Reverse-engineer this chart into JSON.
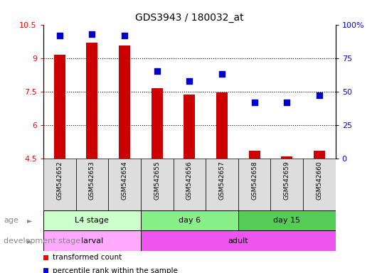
{
  "title": "GDS3943 / 180032_at",
  "samples": [
    "GSM542652",
    "GSM542653",
    "GSM542654",
    "GSM542655",
    "GSM542656",
    "GSM542657",
    "GSM542658",
    "GSM542659",
    "GSM542660"
  ],
  "transformed_count": [
    9.15,
    9.7,
    9.55,
    7.65,
    7.35,
    7.45,
    4.85,
    4.6,
    4.85
  ],
  "percentile_rank": [
    92,
    93,
    92,
    65,
    58,
    63,
    42,
    42,
    47
  ],
  "ylim_left": [
    4.5,
    10.5
  ],
  "ylim_right": [
    0,
    100
  ],
  "yticks_left": [
    4.5,
    6.0,
    7.5,
    9.0,
    10.5
  ],
  "ytick_labels_left": [
    "4.5",
    "6",
    "7.5",
    "9",
    "10.5"
  ],
  "yticks_right": [
    0,
    25,
    50,
    75,
    100
  ],
  "ytick_labels_right": [
    "0",
    "25",
    "50",
    "75",
    "100%"
  ],
  "age_groups": [
    {
      "label": "L4 stage",
      "start": 0,
      "end": 3,
      "color": "#ccffcc"
    },
    {
      "label": "day 6",
      "start": 3,
      "end": 6,
      "color": "#88ee88"
    },
    {
      "label": "day 15",
      "start": 6,
      "end": 9,
      "color": "#55cc55"
    }
  ],
  "dev_groups": [
    {
      "label": "larval",
      "start": 0,
      "end": 3,
      "color": "#ffaaff"
    },
    {
      "label": "adult",
      "start": 3,
      "end": 9,
      "color": "#ee55ee"
    }
  ],
  "bar_color": "#cc0000",
  "dot_color": "#0000cc",
  "bar_width": 0.35,
  "dot_size": 40,
  "plot_bg": "#ffffff",
  "tick_bg": "#dddddd"
}
